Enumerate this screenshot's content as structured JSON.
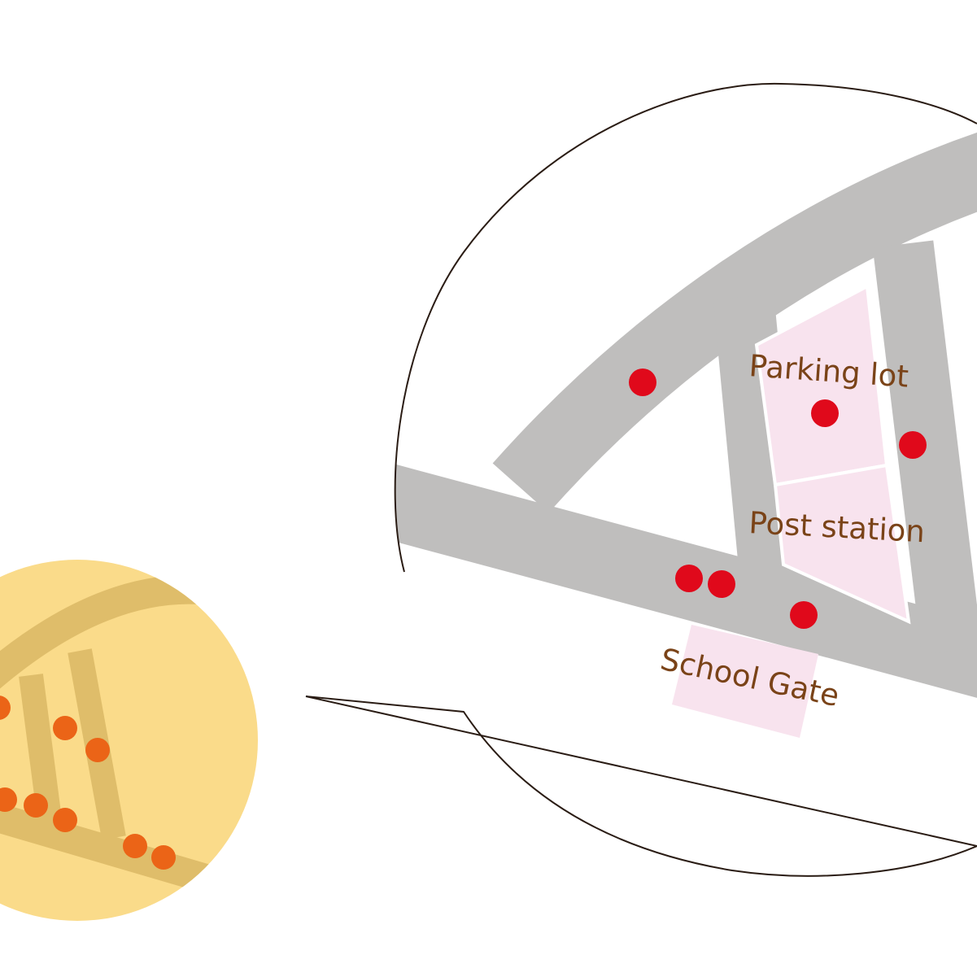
{
  "labels": {
    "parking_lot": "Parking lot",
    "post_station": "Post station",
    "school_gate": "School Gate"
  },
  "colors": {
    "background": "#ffffff",
    "road": "#bfbebd",
    "building_fill": "#f8e3ee",
    "marker": "#e0091b",
    "label_text": "#7a4318",
    "overview_circle": "#fadb8a",
    "overview_road": "#dfbd6a",
    "overview_marker": "#eb6417",
    "bubble_outline": "#2a1c14"
  },
  "icons": {
    "marker": "red-dot-marker",
    "overview_marker": "orange-dot-marker"
  }
}
